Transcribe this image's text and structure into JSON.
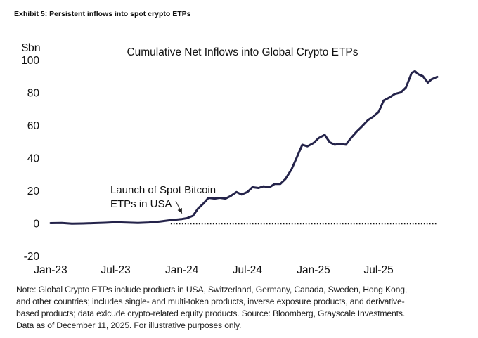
{
  "header": {
    "exhibit_title": "Exhibit 5: Persistent inflows into spot crypto ETPs"
  },
  "chart_data": {
    "type": "line",
    "title": "Cumulative Net Inflows into Global Crypto ETPs",
    "ylabel": "$bn",
    "xlabel": "",
    "ylim": [
      -20,
      100
    ],
    "yticks": [
      100,
      80,
      60,
      40,
      20,
      0,
      -20
    ],
    "ytick_labels": [
      "100",
      "80",
      "60",
      "40",
      "20",
      "0",
      "-20"
    ],
    "xlim": [
      "2023-01-01",
      "2025-12-11"
    ],
    "xtick_labels": [
      "Jan-23",
      "Jul-23",
      "Jan-24",
      "Jul-24",
      "Jan-25",
      "Jul-25"
    ],
    "xticks": [
      "2023-01-01",
      "2023-07-01",
      "2024-01-01",
      "2024-07-01",
      "2025-01-01",
      "2025-07-01"
    ],
    "grid": false,
    "zero_line": "dotted",
    "line_color": "#24234a",
    "series": [
      {
        "name": "Cumulative Net Inflows",
        "x": [
          "2023-01-01",
          "2023-02-01",
          "2023-03-01",
          "2023-04-01",
          "2023-05-01",
          "2023-06-01",
          "2023-07-01",
          "2023-08-01",
          "2023-09-01",
          "2023-10-01",
          "2023-11-01",
          "2023-12-01",
          "2024-01-01",
          "2024-01-15",
          "2024-02-01",
          "2024-02-15",
          "2024-03-01",
          "2024-03-15",
          "2024-04-01",
          "2024-04-15",
          "2024-05-01",
          "2024-05-15",
          "2024-06-01",
          "2024-06-15",
          "2024-07-01",
          "2024-07-15",
          "2024-08-01",
          "2024-08-15",
          "2024-09-01",
          "2024-09-15",
          "2024-10-01",
          "2024-10-15",
          "2024-11-01",
          "2024-11-15",
          "2024-12-01",
          "2024-12-15",
          "2025-01-01",
          "2025-01-15",
          "2025-02-01",
          "2025-02-15",
          "2025-03-01",
          "2025-03-15",
          "2025-04-01",
          "2025-04-15",
          "2025-05-01",
          "2025-05-15",
          "2025-06-01",
          "2025-06-15",
          "2025-07-01",
          "2025-07-15",
          "2025-08-01",
          "2025-08-15",
          "2025-09-01",
          "2025-09-15",
          "2025-10-01",
          "2025-10-10",
          "2025-10-20",
          "2025-11-01",
          "2025-11-15",
          "2025-11-25",
          "2025-12-11"
        ],
        "y": [
          0,
          0.1,
          -0.3,
          -0.2,
          0,
          0.2,
          0.5,
          0.3,
          0.1,
          0.4,
          1.0,
          1.8,
          2.5,
          3.0,
          4.5,
          9.0,
          12.0,
          15.5,
          15.0,
          15.5,
          15.0,
          16.5,
          19.0,
          17.5,
          19.0,
          22.0,
          21.5,
          22.5,
          22.0,
          24.0,
          24.0,
          27.0,
          33.0,
          40.0,
          48.0,
          47.0,
          49.0,
          52.0,
          54.0,
          49.5,
          48.0,
          48.5,
          48.0,
          52.0,
          56.0,
          59.0,
          63.0,
          65.0,
          68.0,
          75.0,
          77.0,
          79.0,
          80.0,
          83.0,
          92.0,
          93.0,
          91.0,
          90.0,
          86.0,
          88.0,
          89.5
        ]
      }
    ],
    "annotations": [
      {
        "text_lines": [
          "Launch of Spot Bitcoin",
          "ETPs in USA"
        ],
        "target_x": "2024-01-11",
        "target_y": 2.5,
        "arrow": true
      }
    ]
  },
  "footer": {
    "note_lines": [
      "Note: Global Crypto ETPs include products in USA, Switzerland, Germany, Canada, Sweden, Hong Kong,",
      "and other countries; includes single- and multi-token products, inverse exposure products, and derivative-",
      "based products; data exlcude crypto-related equity products. Source: Bloomberg, Grayscale Investments.",
      "Data as of December 11, 2025. For illustrative purposes only."
    ]
  }
}
